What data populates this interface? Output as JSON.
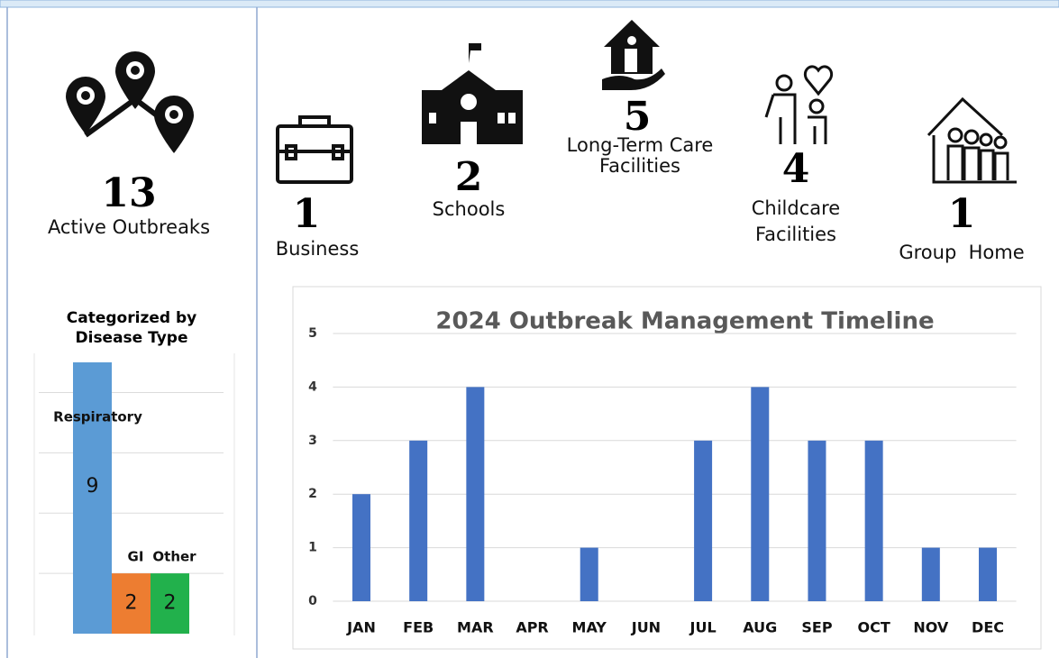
{
  "summary": {
    "total": {
      "value": 13,
      "label": "Active Outbreaks"
    },
    "settings": [
      {
        "value": 1,
        "label": "Business"
      },
      {
        "value": 2,
        "label": "Schools"
      },
      {
        "value": 5,
        "label": "Long-Term Care Facilities"
      },
      {
        "value": 4,
        "label": "Childcare Facilities"
      },
      {
        "value": 1,
        "label": "Group  Home"
      }
    ]
  },
  "chart_data": [
    {
      "type": "bar",
      "title": "Categorized by Disease Type",
      "categories": [
        "Respiratory",
        "GI",
        "Other"
      ],
      "values": [
        9,
        2,
        2
      ],
      "colors": [
        "#5b9bd5",
        "#ed7d31",
        "#22b14c"
      ],
      "ylim": [
        0,
        9
      ],
      "yticks": [
        2,
        4,
        6,
        8
      ],
      "grid": true
    },
    {
      "type": "bar",
      "title": "2024 Outbreak Management Timeline",
      "categories": [
        "JAN",
        "FEB",
        "MAR",
        "APR",
        "MAY",
        "JUN",
        "JUL",
        "AUG",
        "SEP",
        "OCT",
        "NOV",
        "DEC"
      ],
      "values": [
        2,
        3,
        4,
        0,
        1,
        0,
        3,
        4,
        3,
        3,
        1,
        1
      ],
      "color": "#4472c4",
      "ylim": [
        0,
        5
      ],
      "yticks": [
        0,
        1,
        2,
        3,
        4,
        5
      ],
      "grid": true
    }
  ]
}
